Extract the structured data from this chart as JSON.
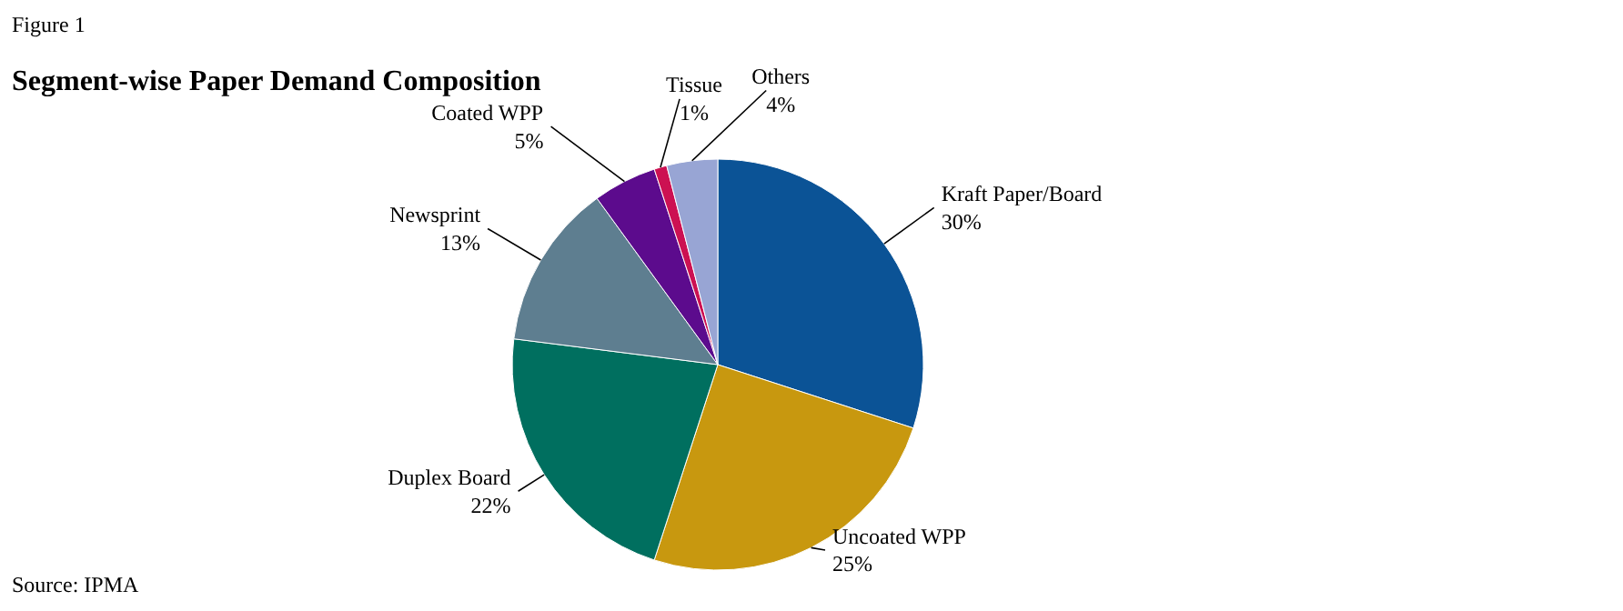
{
  "chart_data": {
    "type": "pie",
    "title": "Segment-wise Paper Demand Composition",
    "categories": [
      "Kraft Paper/Board",
      "Uncoated WPP",
      "Duplex Board",
      "Newsprint",
      "Coated WPP",
      "Tissue",
      "Others"
    ],
    "values": [
      30,
      25,
      22,
      13,
      5,
      1,
      4
    ],
    "value_labels": [
      "30%",
      "25%",
      "22%",
      "13%",
      "5%",
      "1%",
      "4%"
    ],
    "colors": [
      "#0b5396",
      "#c8980f",
      "#006f5f",
      "#5e7e90",
      "#5c0b8d",
      "#cc1152",
      "#98a5d4"
    ],
    "annotations": [
      "Figure 1",
      "Source: IPMA"
    ]
  }
}
